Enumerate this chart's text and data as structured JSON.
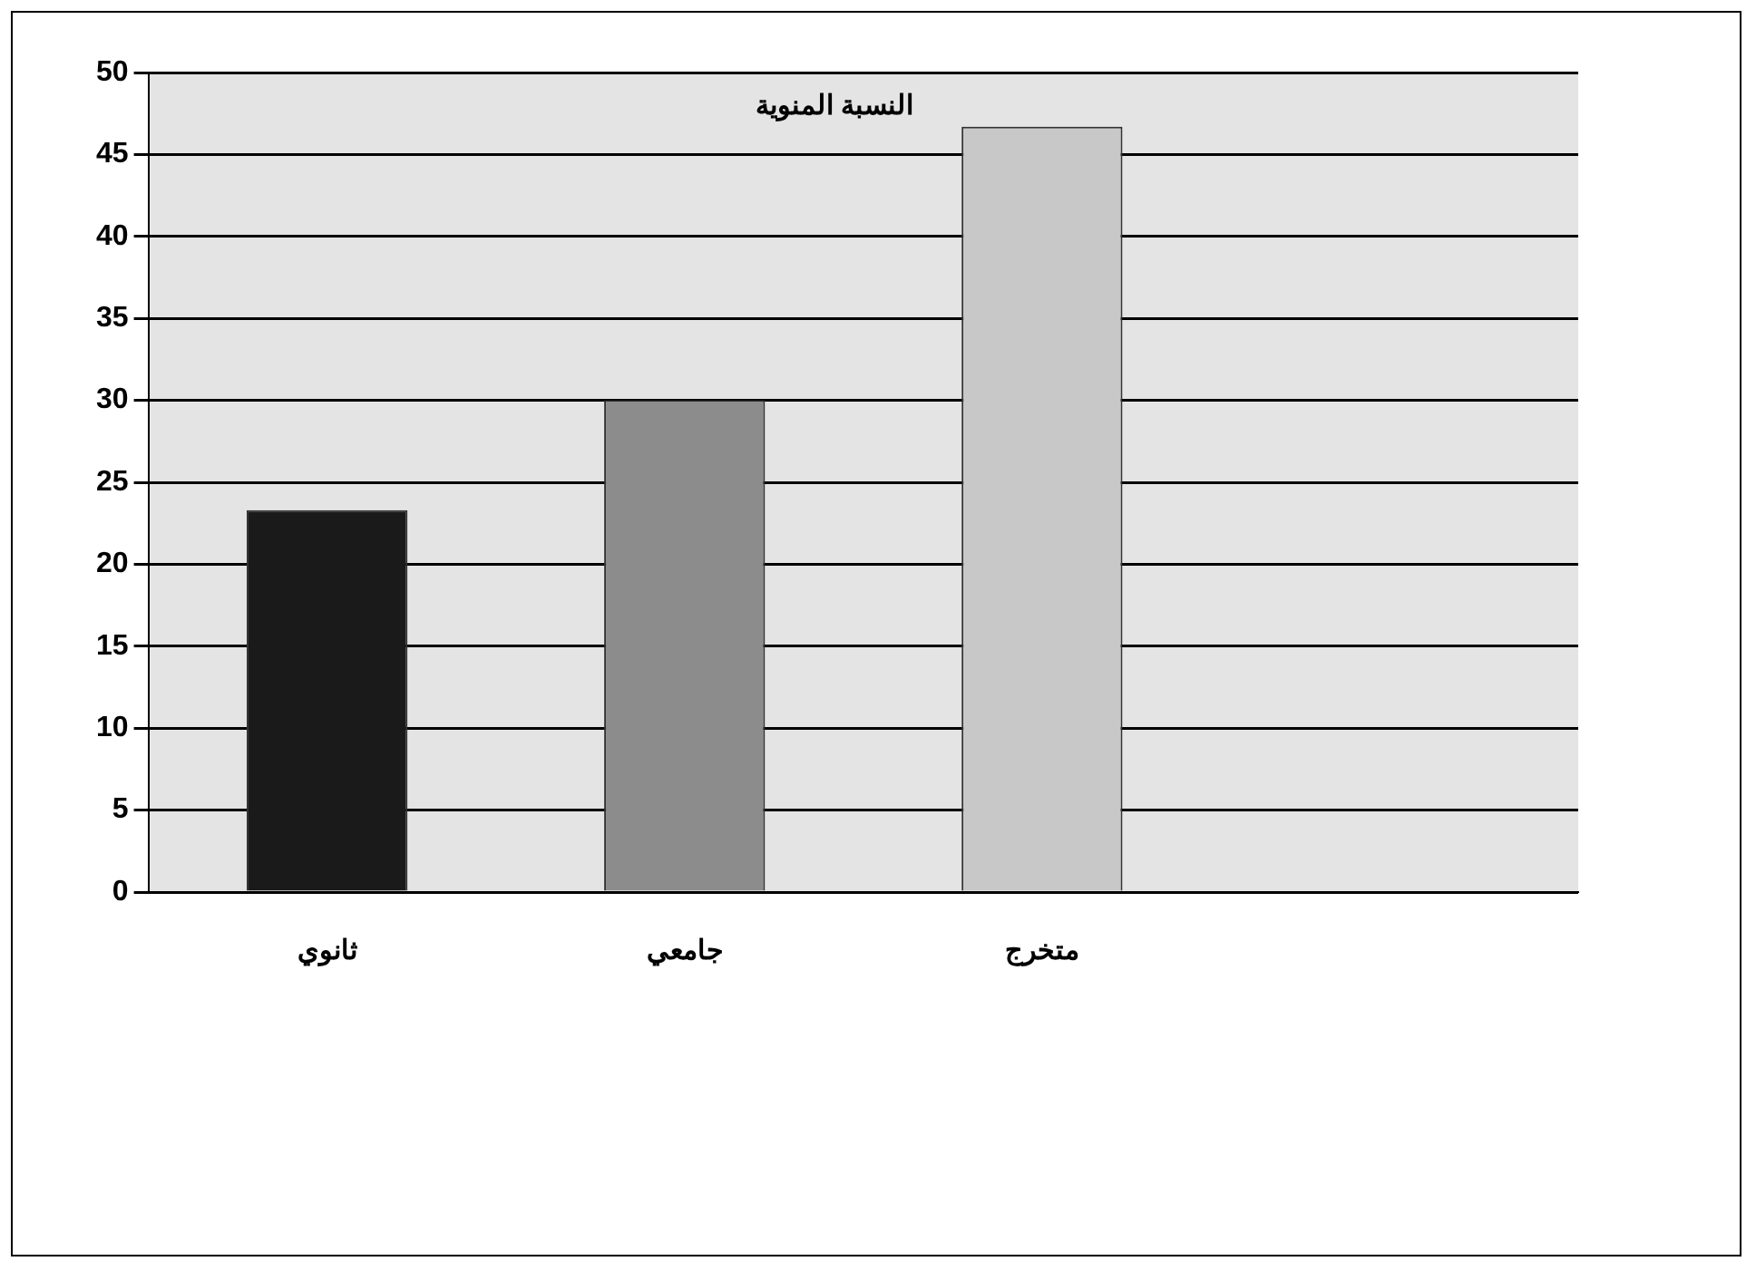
{
  "chart_data": {
    "type": "bar",
    "title": "النسبة المنوية",
    "categories": [
      "ثانوي",
      "جامعي",
      "متخرج",
      null
    ],
    "values": [
      23.3,
      30,
      46.7,
      null
    ],
    "colors": [
      "#1a1a1a",
      "#8c8c8c",
      "#c8c8c8",
      "#c8c8c8"
    ],
    "ylim": [
      0,
      50
    ],
    "yticks": [
      0,
      5,
      10,
      15,
      20,
      25,
      30,
      35,
      40,
      45,
      50
    ],
    "grid": "y",
    "legend": false
  }
}
